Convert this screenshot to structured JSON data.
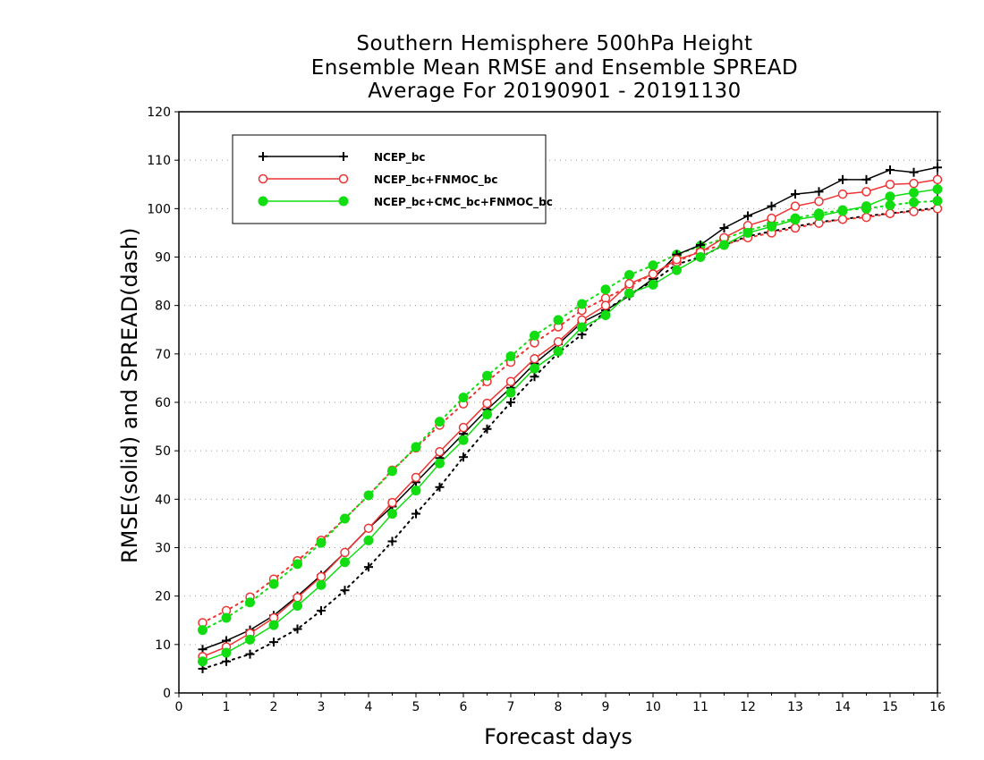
{
  "chart_data": {
    "type": "line",
    "title": [
      "Southern Hemisphere 500hPa Height",
      "Ensemble Mean RMSE and Ensemble SPREAD",
      "Average For 20190901 - 20191130"
    ],
    "xlabel": "Forecast days",
    "ylabel": "RMSE(solid) and SPREAD(dash)",
    "xlim": [
      0,
      16
    ],
    "ylim": [
      0,
      120
    ],
    "xticks": [
      0,
      1,
      2,
      3,
      4,
      5,
      6,
      7,
      8,
      9,
      10,
      11,
      12,
      13,
      14,
      15,
      16
    ],
    "yticks": [
      0,
      10,
      20,
      30,
      40,
      50,
      60,
      70,
      80,
      90,
      100,
      110,
      120
    ],
    "grid": "horizontal dotted",
    "legend_position": "top-left",
    "x": [
      0.5,
      1,
      1.5,
      2,
      2.5,
      3,
      3.5,
      4,
      4.5,
      5,
      5.5,
      6,
      6.5,
      7,
      7.5,
      8,
      8.5,
      9,
      9.5,
      10,
      10.5,
      11,
      11.5,
      12,
      12.5,
      13,
      13.5,
      14,
      14.5,
      15,
      15.5,
      16
    ],
    "series": [
      {
        "name": "NCEP_bc",
        "color": "#000000",
        "marker": "plus",
        "style": "solid",
        "values": [
          9,
          10.8,
          13,
          16,
          20,
          24.3,
          29,
          34,
          38.5,
          43.5,
          48.5,
          53.5,
          58.5,
          63,
          68,
          72,
          76.5,
          79,
          82,
          85.5,
          90.5,
          92.5,
          96,
          98.5,
          100.5,
          103,
          103.5,
          106,
          106,
          108,
          107.5,
          108.5
        ]
      },
      {
        "name": "NCEP_bc",
        "color": "#000000",
        "marker": "plus",
        "style": "dotted",
        "values": [
          5,
          6.5,
          8,
          10.5,
          13.2,
          17,
          21.2,
          26,
          31.3,
          37,
          42.5,
          48.7,
          54.5,
          60,
          65.3,
          70.2,
          74,
          79,
          82.3,
          85,
          88.5,
          90,
          92.5,
          94.3,
          95.3,
          96.3,
          97.2,
          97.8,
          98.5,
          99,
          99.6,
          100.2
        ]
      },
      {
        "name": "NCEP_bc+FNMOC_bc",
        "color": "#ee3333",
        "marker": "open-circle",
        "style": "solid",
        "values": [
          7.5,
          9.5,
          12.3,
          15.5,
          19.7,
          24,
          29,
          34,
          39.3,
          44.5,
          49.8,
          54.8,
          59.8,
          64.3,
          69,
          72.5,
          77,
          80,
          84.5,
          86.5,
          89.5,
          91,
          94,
          96.5,
          98,
          100.5,
          101.5,
          103,
          103.5,
          105,
          105.2,
          106
        ]
      },
      {
        "name": "NCEP_bc+FNMOC_bc",
        "color": "#ee3333",
        "marker": "open-circle",
        "style": "dotted",
        "values": [
          14.5,
          17,
          19.8,
          23.5,
          27.3,
          31.5,
          36,
          40.8,
          46,
          50.6,
          55.3,
          59.7,
          64.3,
          68.3,
          72.3,
          75.6,
          79,
          81.5,
          84,
          86.5,
          89,
          91.3,
          92.5,
          94,
          95,
          96,
          97,
          97.8,
          98.2,
          99,
          99.4,
          100
        ]
      },
      {
        "name": "NCEP_bc+CMC_bc+FNMOC_bc",
        "color": "#11dd11",
        "marker": "filled-circle",
        "style": "solid",
        "values": [
          6.5,
          8.3,
          11,
          14,
          18,
          22.3,
          27,
          31.5,
          37,
          41.8,
          47.4,
          52.2,
          57.5,
          62,
          67,
          70.5,
          75.5,
          78,
          82.5,
          84.3,
          87.3,
          90,
          92.5,
          95,
          96.3,
          97.7,
          98.5,
          99.5,
          100.5,
          102.5,
          103.3,
          104
        ]
      },
      {
        "name": "NCEP_bc+CMC_bc+FNMOC_bc",
        "color": "#11dd11",
        "marker": "filled-circle",
        "style": "dotted",
        "values": [
          13,
          15.5,
          18.7,
          22.5,
          26.6,
          31,
          36,
          40.8,
          45.8,
          50.8,
          56,
          61,
          65.5,
          69.5,
          73.8,
          77,
          80.3,
          83.3,
          86.3,
          88.3,
          90.5,
          92.3,
          93.8,
          95.5,
          96.8,
          98,
          99,
          99.7,
          100,
          100.7,
          101.3,
          101.6
        ]
      }
    ]
  }
}
